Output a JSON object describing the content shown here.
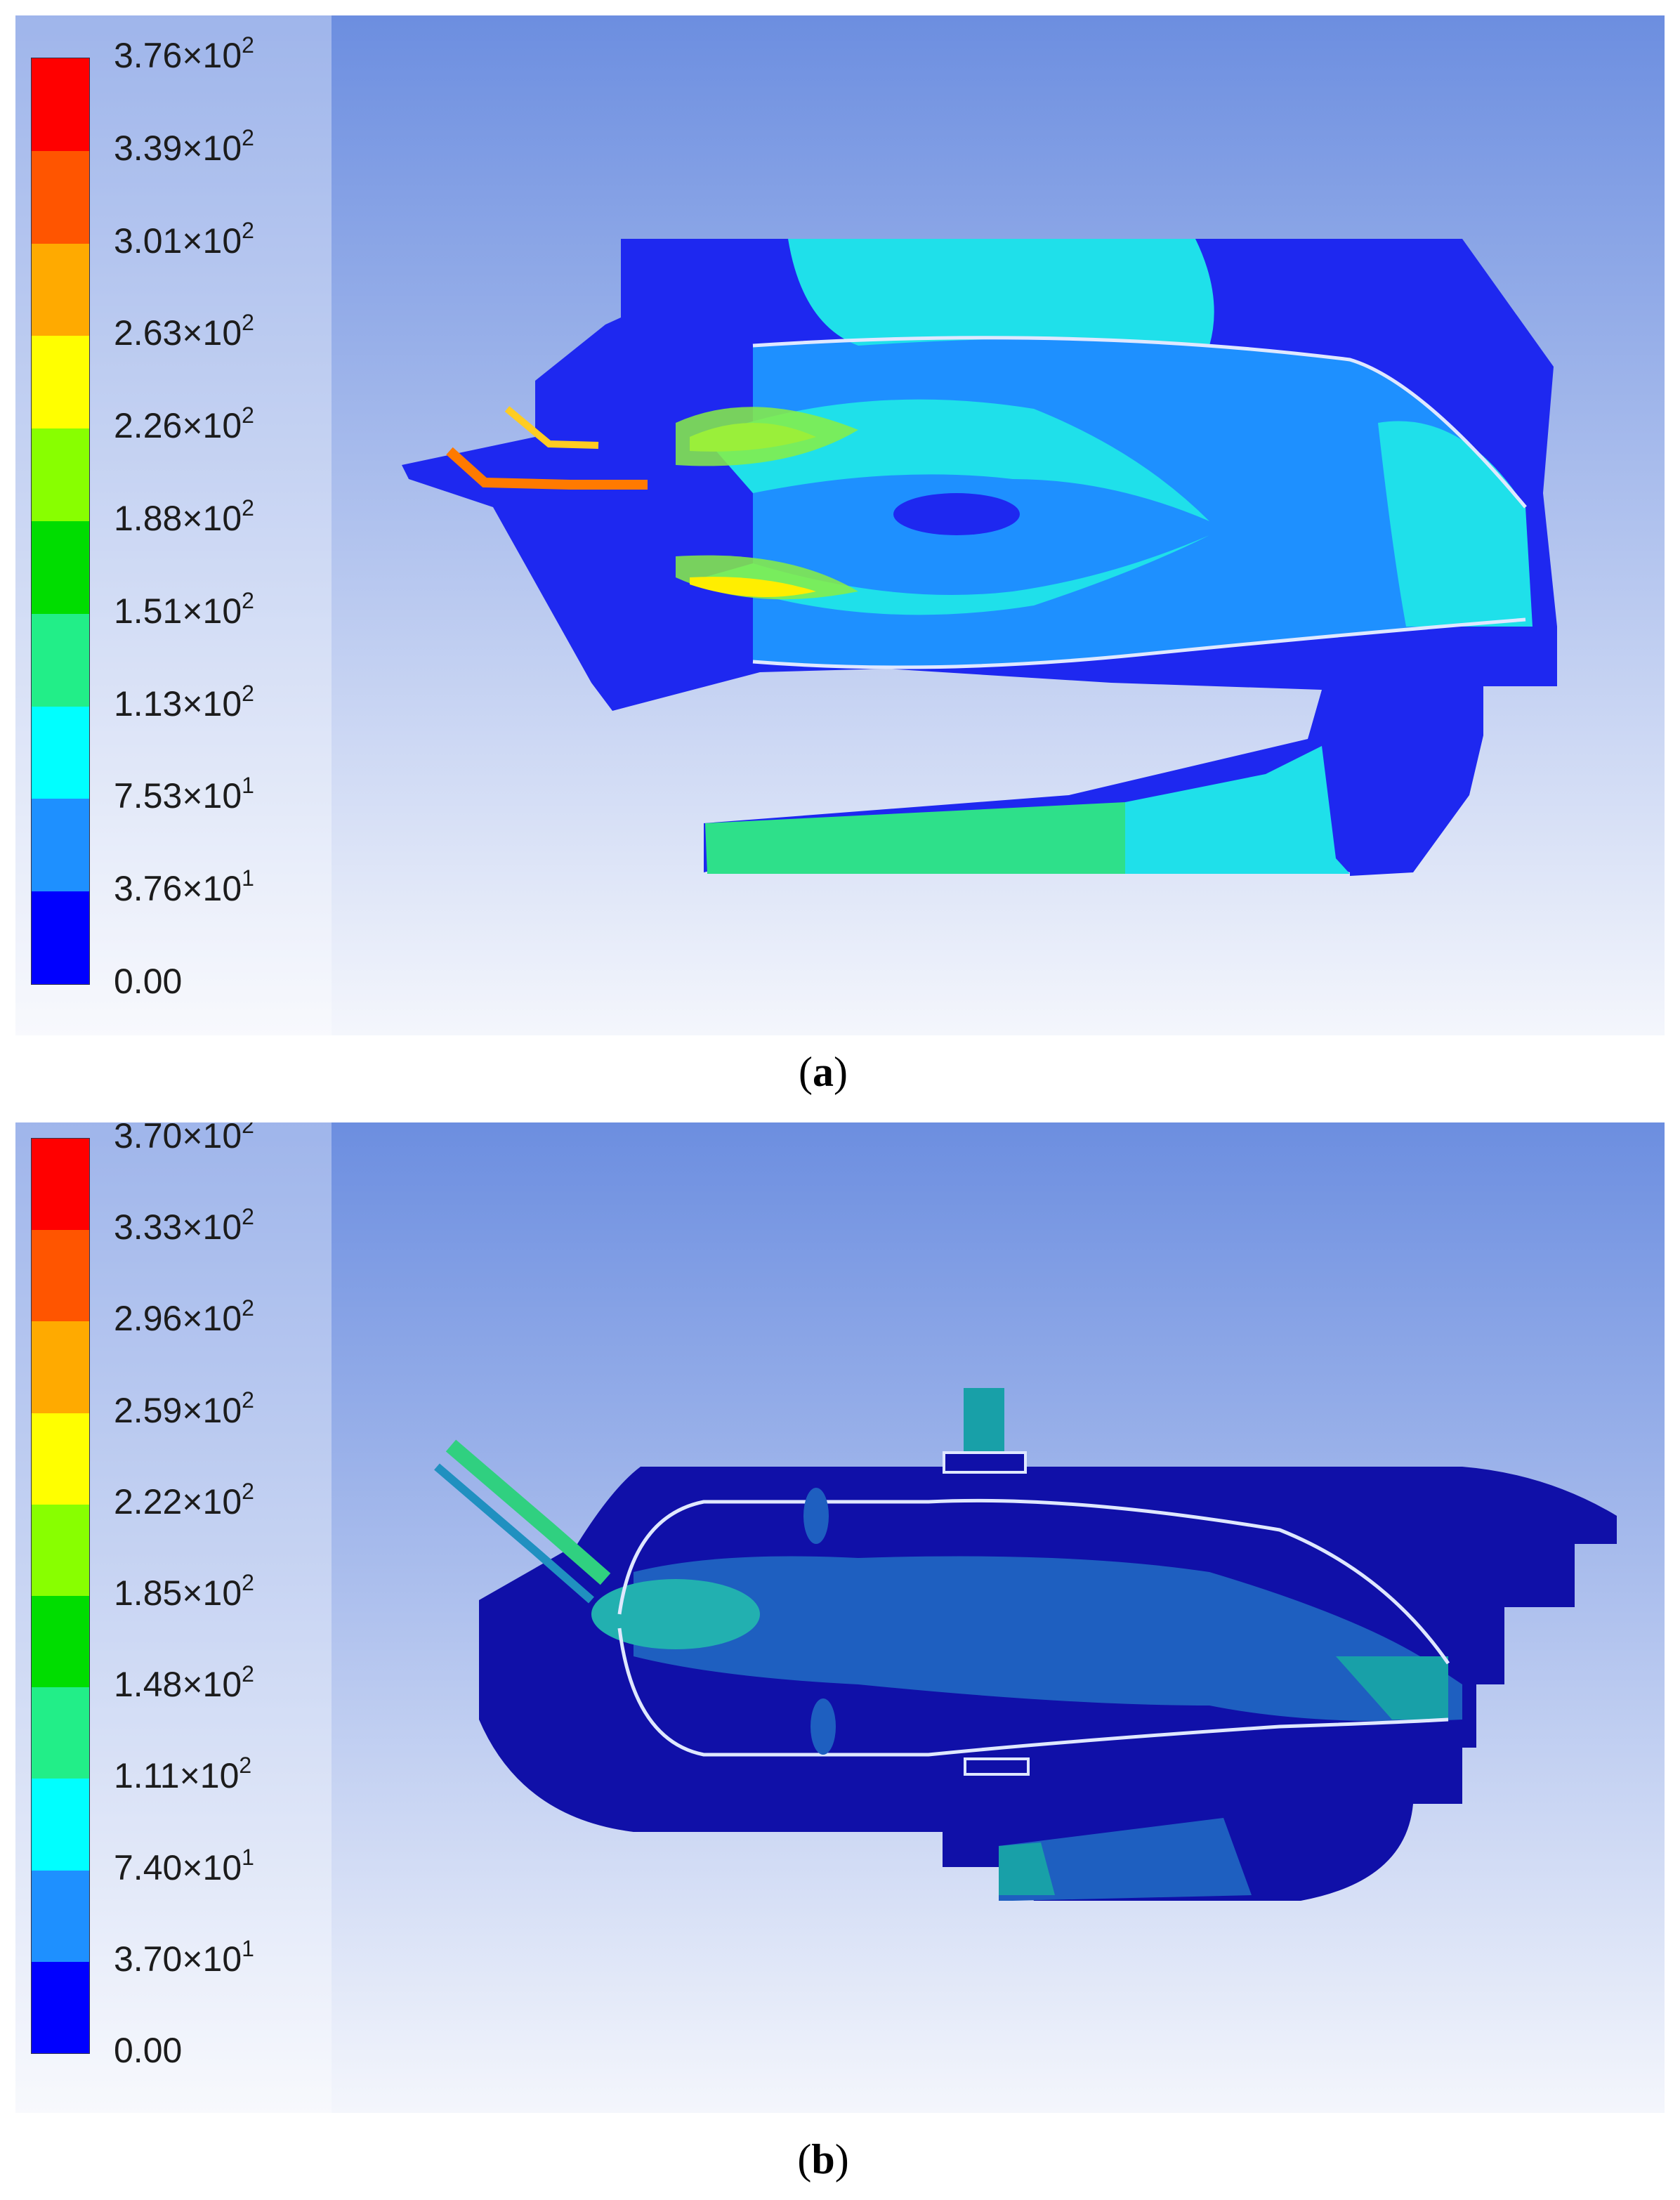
{
  "panels": [
    {
      "id": "a",
      "caption": "a",
      "legend": {
        "colors": [
          "#ff0000",
          "#ff5500",
          "#ffaa00",
          "#ffff00",
          "#88ff00",
          "#00dd00",
          "#22ee88",
          "#00ffff",
          "#1e90ff",
          "#0000ff"
        ],
        "ticks": [
          {
            "mant": "3.76×10",
            "exp": "2"
          },
          {
            "mant": "3.39×10",
            "exp": "2"
          },
          {
            "mant": "3.01×10",
            "exp": "2"
          },
          {
            "mant": "2.63×10",
            "exp": "2"
          },
          {
            "mant": "2.26×10",
            "exp": "2"
          },
          {
            "mant": "1.88×10",
            "exp": "2"
          },
          {
            "mant": "1.51×10",
            "exp": "2"
          },
          {
            "mant": "1.13×10",
            "exp": "2"
          },
          {
            "mant": "7.53×10",
            "exp": "1"
          },
          {
            "mant": "3.76×10",
            "exp": "1"
          },
          {
            "mant": "0.00",
            "exp": ""
          }
        ]
      }
    },
    {
      "id": "b",
      "caption": "b",
      "legend": {
        "colors": [
          "#ff0000",
          "#ff5500",
          "#ffaa00",
          "#ffff00",
          "#88ff00",
          "#00dd00",
          "#22ee88",
          "#00ffff",
          "#1e90ff",
          "#0000ff"
        ],
        "ticks": [
          {
            "mant": "3.70×10",
            "exp": "2"
          },
          {
            "mant": "3.33×10",
            "exp": "2"
          },
          {
            "mant": "2.96×10",
            "exp": "2"
          },
          {
            "mant": "2.59×10",
            "exp": "2"
          },
          {
            "mant": "2.22×10",
            "exp": "2"
          },
          {
            "mant": "1.85×10",
            "exp": "2"
          },
          {
            "mant": "1.48×10",
            "exp": "2"
          },
          {
            "mant": "1.11×10",
            "exp": "2"
          },
          {
            "mant": "7.40×10",
            "exp": "1"
          },
          {
            "mant": "3.70×10",
            "exp": "1"
          },
          {
            "mant": "0.00",
            "exp": ""
          }
        ]
      }
    }
  ]
}
